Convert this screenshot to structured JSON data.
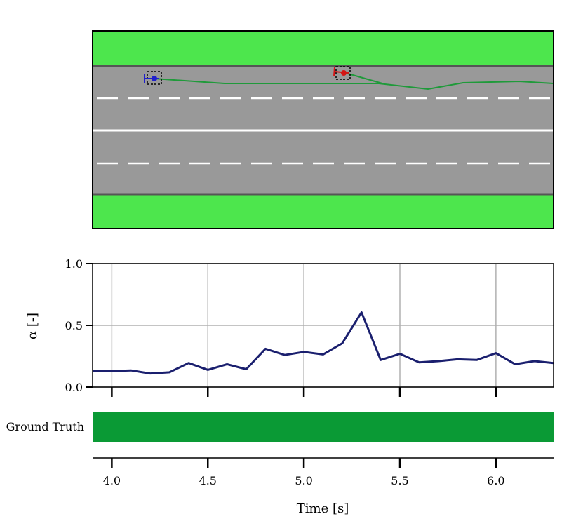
{
  "road_scene": {
    "grass_color": "#4de64d",
    "road_color": "#999999",
    "edge_color": "#555555",
    "lane_marking_color": "#ffffff",
    "trajectory_color": "#1f9a3a",
    "ego_vehicle_color": "#1f1fcc",
    "other_vehicle_color": "#d41515"
  },
  "chart_data": [
    {
      "type": "line",
      "x": [
        3.9,
        4.0,
        4.1,
        4.2,
        4.3,
        4.4,
        4.5,
        4.6,
        4.7,
        4.8,
        4.9,
        5.0,
        5.1,
        5.2,
        5.3,
        5.4,
        5.5,
        5.6,
        5.7,
        5.8,
        5.9,
        6.0,
        6.1,
        6.2,
        6.3
      ],
      "series": [
        {
          "values": [
            0.13,
            0.13,
            0.135,
            0.11,
            0.12,
            0.195,
            0.14,
            0.185,
            0.145,
            0.31,
            0.26,
            0.285,
            0.265,
            0.355,
            0.605,
            0.22,
            0.27,
            0.2,
            0.21,
            0.225,
            0.22,
            0.275,
            0.185,
            0.21,
            0.195
          ],
          "color": "#1a1f6e"
        }
      ],
      "ylabel": "α [-]",
      "ylim": [
        0.0,
        1.0
      ],
      "xlim": [
        3.9,
        6.3
      ],
      "yticks": [
        "0.0",
        "0.5",
        "1.0"
      ],
      "xticks": [
        4.0,
        4.5,
        5.0,
        5.5,
        6.0
      ],
      "grid": true
    },
    {
      "type": "bar",
      "categories": [
        "Ground Truth"
      ],
      "intervals": [
        [
          3.9,
          6.3
        ]
      ],
      "color": "#0a9a35"
    }
  ],
  "time_axis": {
    "xlabel": "Time [s]",
    "tick_labels": [
      "4.0",
      "4.5",
      "5.0",
      "5.5",
      "6.0"
    ]
  },
  "labels": {
    "alpha_ylabel": "α [-]",
    "ground_truth": "Ground Truth"
  }
}
